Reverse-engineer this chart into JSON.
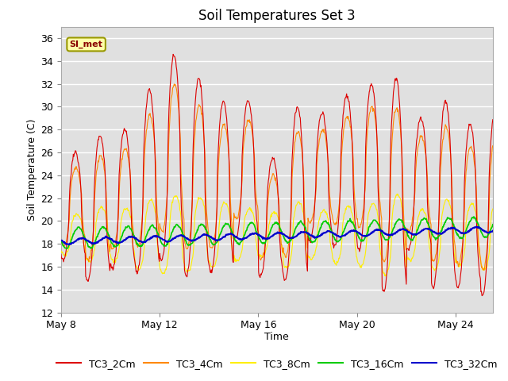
{
  "title": "Soil Temperatures Set 3",
  "xlabel": "Time",
  "ylabel": "Soil Temperature (C)",
  "ylim": [
    12,
    37
  ],
  "yticks": [
    12,
    14,
    16,
    18,
    20,
    22,
    24,
    26,
    28,
    30,
    32,
    34,
    36
  ],
  "xlim_days": [
    0,
    17.5
  ],
  "x_tick_labels": [
    "May 8",
    "May 12",
    "May 16",
    "May 20",
    "May 24"
  ],
  "x_tick_positions": [
    0,
    4,
    8,
    12,
    16
  ],
  "annotation_text": "SI_met",
  "colors": {
    "TC3_2Cm": "#dd0000",
    "TC3_4Cm": "#ff8800",
    "TC3_8Cm": "#ffee00",
    "TC3_16Cm": "#00cc00",
    "TC3_32Cm": "#0000cc"
  },
  "legend_labels": [
    "TC3_2Cm",
    "TC3_4Cm",
    "TC3_8Cm",
    "TC3_16Cm",
    "TC3_32Cm"
  ],
  "title_fontsize": 12,
  "axis_label_fontsize": 9,
  "tick_fontsize": 9,
  "fig_bg": "#ffffff",
  "plot_bg": "#e0e0e0",
  "grid_color": "#ffffff"
}
